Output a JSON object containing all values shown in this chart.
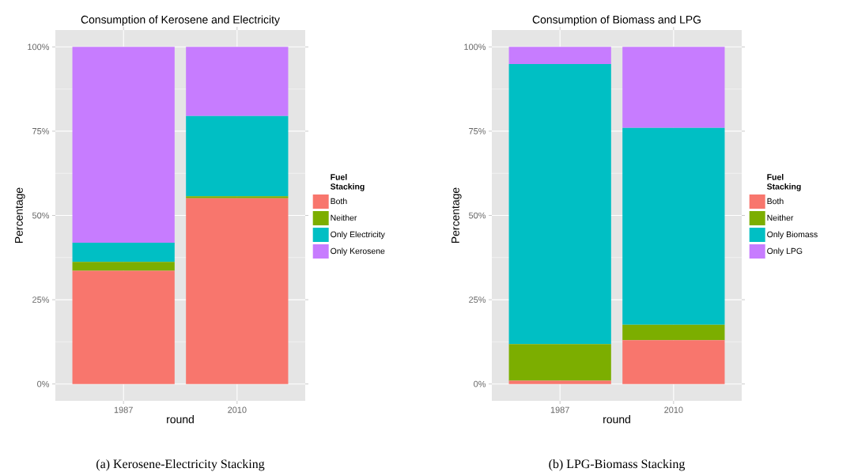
{
  "chart_data": [
    {
      "type": "bar",
      "title": "Consumption of Kerosene and Electricity",
      "xlabel": "round",
      "ylabel": "Percentage",
      "legend_title": "Fuel Stacking",
      "categories": [
        "1987",
        "2010"
      ],
      "stacked": true,
      "series": [
        {
          "name": "Both",
          "color": "#f8766d",
          "values": [
            33.6,
            55.1
          ]
        },
        {
          "name": "Neither",
          "color": "#7cae00",
          "values": [
            2.6,
            0.6
          ]
        },
        {
          "name": "Only Electricity",
          "color": "#00bfc4",
          "values": [
            5.7,
            23.8
          ]
        },
        {
          "name": "Only Kerosene",
          "color": "#c77cff",
          "values": [
            58.1,
            20.5
          ]
        }
      ],
      "ylim": [
        -5,
        105
      ],
      "yticks": [
        {
          "value": 0,
          "label": "0%"
        },
        {
          "value": 25,
          "label": "25%"
        },
        {
          "value": 50,
          "label": "50%"
        },
        {
          "value": 75,
          "label": "75%"
        },
        {
          "value": 100,
          "label": "100%"
        }
      ],
      "grid": true,
      "legend": "right",
      "annotations": [
        "(a) Kerosene-Electricity Stacking"
      ]
    },
    {
      "type": "bar",
      "title": "Consumption of Biomass and LPG",
      "xlabel": "round",
      "ylabel": "Percentage",
      "legend_title": "Fuel Stacking",
      "categories": [
        "1987",
        "2010"
      ],
      "stacked": true,
      "series": [
        {
          "name": "Both",
          "color": "#f8766d",
          "values": [
            1.0,
            13.0
          ]
        },
        {
          "name": "Neither",
          "color": "#7cae00",
          "values": [
            10.8,
            4.6
          ]
        },
        {
          "name": "Only Biomass",
          "color": "#00bfc4",
          "values": [
            83.1,
            58.4
          ]
        },
        {
          "name": "Only LPG",
          "color": "#c77cff",
          "values": [
            5.1,
            24.0
          ]
        }
      ],
      "ylim": [
        -5,
        105
      ],
      "yticks": [
        {
          "value": 0,
          "label": "0%"
        },
        {
          "value": 25,
          "label": "25%"
        },
        {
          "value": 50,
          "label": "50%"
        },
        {
          "value": 75,
          "label": "75%"
        },
        {
          "value": 100,
          "label": "100%"
        }
      ],
      "grid": true,
      "legend": "right",
      "annotations": [
        "(b) LPG-Biomass Stacking"
      ]
    }
  ]
}
